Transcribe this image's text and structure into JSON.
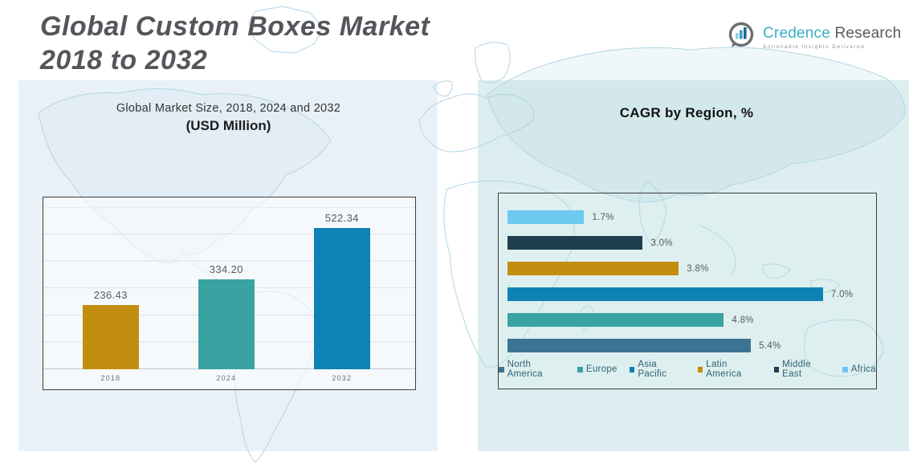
{
  "header": {
    "title_line1": "Global Custom Boxes Market",
    "title_line2": "2018 to 2032"
  },
  "logo": {
    "brand_primary": "Credence",
    "brand_secondary": "Research",
    "tagline": "Actionable Insights Delivered"
  },
  "market_chart": {
    "title_line1": "Global Market Size, 2018, 2024 and 2032",
    "title_line2": "(USD Million)"
  },
  "cagr_chart": {
    "title": "CAGR by Region, %"
  },
  "colors": {
    "gold": "#C18E10",
    "teal": "#39A2A2",
    "blue": "#0E82B4",
    "steel_blue": "#3B7492",
    "dark_navy": "#1D3E4E",
    "light_blue": "#6EC9F1",
    "panel_left": "#E9F1F8",
    "panel_right": "#DCEEEF",
    "title_gray": "#55565C",
    "logo_teal": "#3BAFC4"
  },
  "chart_data": [
    {
      "type": "bar",
      "orientation": "vertical",
      "title": "Global Market Size, 2018, 2024 and 2032 (USD Million)",
      "categories": [
        "2018",
        "2024",
        "2032"
      ],
      "values": [
        236.43,
        334.2,
        522.34
      ],
      "value_labels": [
        "236.43",
        "334.20",
        "522.34"
      ],
      "bar_colors": [
        "#C18E10",
        "#39A2A2",
        "#0E82B4"
      ],
      "xlabel": "",
      "ylabel": "USD Million",
      "ylim": [
        0,
        600
      ],
      "grid": true,
      "legend": false
    },
    {
      "type": "bar",
      "orientation": "horizontal",
      "title": "CAGR by Region, %",
      "categories": [
        "Africa",
        "Middle East",
        "Latin America",
        "Asia Pacific",
        "Europe",
        "North America"
      ],
      "values": [
        1.7,
        3.0,
        3.8,
        7.0,
        4.8,
        5.4
      ],
      "value_labels": [
        "1.7%",
        "3.0%",
        "3.8%",
        "7.0%",
        "4.8%",
        "5.4%"
      ],
      "bar_colors": [
        "#6EC9F1",
        "#1D3E4E",
        "#C18E10",
        "#0E82B4",
        "#39A2A2",
        "#3B7492"
      ],
      "xlim": [
        0,
        8
      ],
      "grid": false,
      "legend_position": "bottom",
      "legend": [
        "North America",
        "Europe",
        "Asia Pacific",
        "Latin America",
        "Middle East",
        "Africa"
      ],
      "legend_colors": [
        "#3B7492",
        "#39A2A2",
        "#0E82B4",
        "#C18E10",
        "#1D3E4E",
        "#6EC9F1"
      ]
    }
  ]
}
